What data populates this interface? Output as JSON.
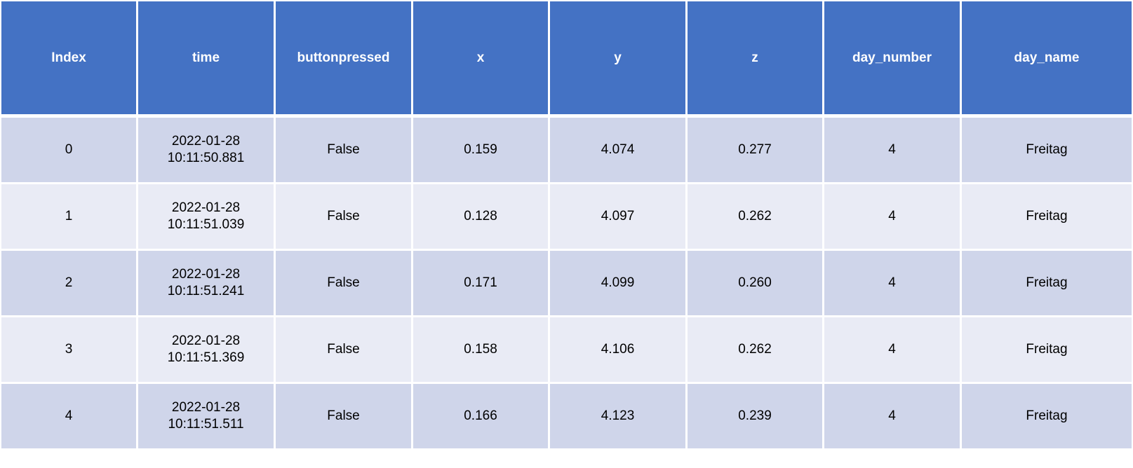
{
  "table": {
    "headers": [
      "Index",
      "time",
      "buttonpressed",
      "x",
      "y",
      "z",
      "day_number",
      "day_name"
    ],
    "rows": [
      {
        "index": "0",
        "date": "2022-01-28",
        "clock": "10:11:50.881",
        "buttonpressed": "False",
        "x": "0.159",
        "y": "4.074",
        "z": "0.277",
        "day_number": "4",
        "day_name": "Freitag"
      },
      {
        "index": "1",
        "date": "2022-01-28",
        "clock": "10:11:51.039",
        "buttonpressed": "False",
        "x": "0.128",
        "y": "4.097",
        "z": "0.262",
        "day_number": "4",
        "day_name": "Freitag"
      },
      {
        "index": "2",
        "date": "2022-01-28",
        "clock": "10:11:51.241",
        "buttonpressed": "False",
        "x": "0.171",
        "y": "4.099",
        "z": "0.260",
        "day_number": "4",
        "day_name": "Freitag"
      },
      {
        "index": "3",
        "date": "2022-01-28",
        "clock": "10:11:51.369",
        "buttonpressed": "False",
        "x": "0.158",
        "y": "4.106",
        "z": "0.262",
        "day_number": "4",
        "day_name": "Freitag"
      },
      {
        "index": "4",
        "date": "2022-01-28",
        "clock": "10:11:51.511",
        "buttonpressed": "False",
        "x": "0.166",
        "y": "4.123",
        "z": "0.239",
        "day_number": "4",
        "day_name": "Freitag"
      }
    ]
  },
  "colors": {
    "header_bg": "#4472c4",
    "row_dark": "#cfd5ea",
    "row_light": "#e9ebf5",
    "header_text": "#ffffff"
  }
}
